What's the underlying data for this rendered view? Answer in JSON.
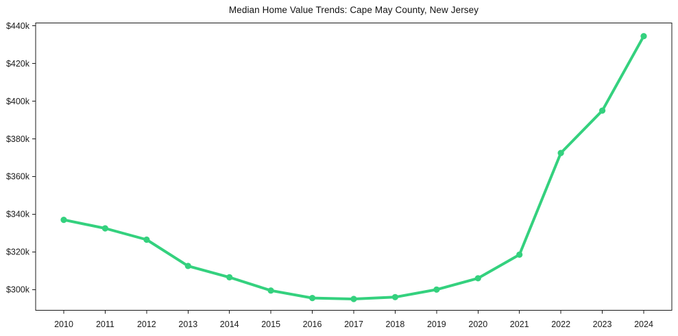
{
  "chart_data": {
    "type": "line",
    "title": "Median Home Value Trends: Cape May County, New Jersey",
    "x": [
      2010,
      2011,
      2012,
      2013,
      2014,
      2015,
      2016,
      2017,
      2018,
      2019,
      2020,
      2021,
      2022,
      2023,
      2024
    ],
    "xtick_labels": [
      "2010",
      "2011",
      "2012",
      "2013",
      "2014",
      "2015",
      "2016",
      "2017",
      "2018",
      "2019",
      "2020",
      "2021",
      "2022",
      "2023",
      "2024"
    ],
    "series": [
      {
        "name": "Median Home Value",
        "values": [
          337000,
          332500,
          326500,
          312500,
          306500,
          299500,
          295500,
          295000,
          296000,
          300000,
          306000,
          318500,
          372500,
          395000,
          434500
        ]
      }
    ],
    "xlabel": "",
    "ylabel": "",
    "ylim": [
      289000,
      441500
    ],
    "yticks": [
      300000,
      320000,
      340000,
      360000,
      380000,
      400000,
      420000,
      440000
    ],
    "ytick_labels": [
      "$300k",
      "$320k",
      "$340k",
      "$360k",
      "$380k",
      "$400k",
      "$420k",
      "$440k"
    ],
    "grid": false,
    "legend_position": "none",
    "line_color": "#34d17e",
    "marker": "circle",
    "axis_color": "#1a1a1a",
    "text_color": "#1a1a1a",
    "background": "#ffffff"
  }
}
